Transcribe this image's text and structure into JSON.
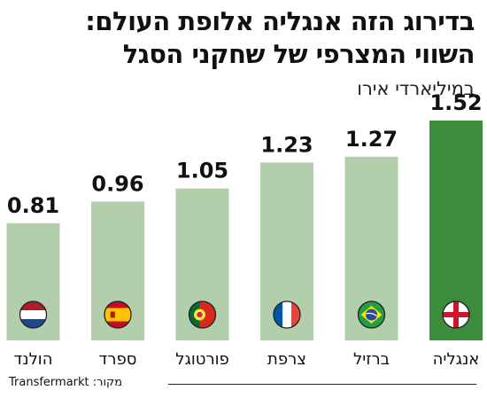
{
  "title_line1": "בדירוג הזה אנגליה אלופת העולם:",
  "title_line2": "השווי המצרפי של שחקני הסגל",
  "subtitle": "במיליארדי אירו",
  "source": "מקור: Transfermarkt",
  "colors": {
    "bar": "#b3ceaa",
    "highlight": "#3b8d3b",
    "text": "#111111"
  },
  "chart_data": {
    "type": "bar",
    "title": "בדירוג הזה אנגליה אלופת העולם: השווי המצרפי של שחקני הסגל",
    "ylabel": "במיליארדי אירו",
    "categories": [
      "אנגליה",
      "ברזיל",
      "צרפת",
      "פורטוגל",
      "ספרד",
      "הולנד"
    ],
    "values": [
      1.52,
      1.27,
      1.23,
      1.05,
      0.96,
      0.81
    ],
    "value_labels": [
      "1.52",
      "1.27",
      "1.23",
      "1.05",
      "0.96",
      "0.81"
    ],
    "flags": [
      "england-flag-icon",
      "brazil-flag-icon",
      "france-flag-icon",
      "portugal-flag-icon",
      "spain-flag-icon",
      "netherlands-flag-icon"
    ],
    "highlight_index": 0,
    "ylim": [
      0,
      1.52
    ],
    "grid": false,
    "legend": "none"
  }
}
